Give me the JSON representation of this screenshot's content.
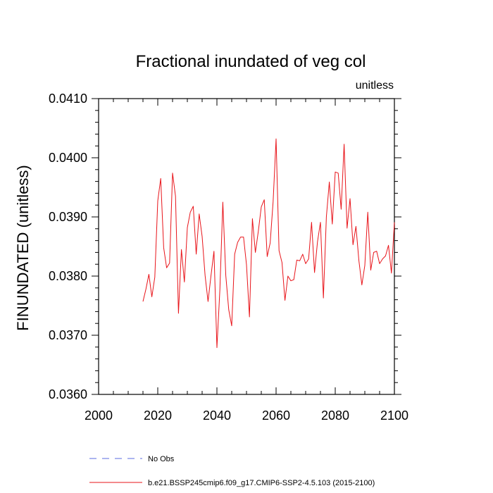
{
  "chart_data": {
    "type": "line",
    "title": "Fractional inundated of veg col",
    "units_label": "unitless",
    "ylabel": "FINUNDATED  (unitless)",
    "xlabel": "",
    "xlim": [
      2000,
      2100
    ],
    "ylim": [
      0.036,
      0.041
    ],
    "x_ticks": [
      2000,
      2020,
      2040,
      2060,
      2080,
      2100
    ],
    "x_tick_labels": [
      "2000",
      "2020",
      "2040",
      "2060",
      "2080",
      "2100"
    ],
    "y_ticks": [
      0.036,
      0.037,
      0.038,
      0.039,
      0.04,
      0.041
    ],
    "y_tick_labels": [
      "0.0360",
      "0.0370",
      "0.0380",
      "0.0390",
      "0.0400",
      "0.0410"
    ],
    "series": [
      {
        "name": "b.e21.BSSP245cmip6.f09_g17.CMIP6-SSP2-4.5.103 (2015-2100)",
        "color": "#e8141a",
        "x": [
          2015,
          2016,
          2017,
          2018,
          2019,
          2020,
          2021,
          2022,
          2023,
          2024,
          2025,
          2026,
          2027,
          2028,
          2029,
          2030,
          2031,
          2032,
          2033,
          2034,
          2035,
          2036,
          2037,
          2038,
          2039,
          2040,
          2041,
          2042,
          2043,
          2044,
          2045,
          2046,
          2047,
          2048,
          2049,
          2050,
          2051,
          2052,
          2053,
          2054,
          2055,
          2056,
          2057,
          2058,
          2059,
          2060,
          2061,
          2062,
          2063,
          2064,
          2065,
          2066,
          2067,
          2068,
          2069,
          2070,
          2071,
          2072,
          2073,
          2074,
          2075,
          2076,
          2077,
          2078,
          2079,
          2080,
          2081,
          2082,
          2083,
          2084,
          2085,
          2086,
          2087,
          2088,
          2089,
          2090,
          2091,
          2092,
          2093,
          2094,
          2095,
          2096,
          2097,
          2098,
          2099,
          2100
        ],
        "values": [
          0.03757,
          0.03778,
          0.03803,
          0.03765,
          0.03798,
          0.03927,
          0.03965,
          0.03848,
          0.03814,
          0.03822,
          0.03974,
          0.03935,
          0.03737,
          0.03845,
          0.0379,
          0.03882,
          0.03908,
          0.03918,
          0.03837,
          0.03905,
          0.03867,
          0.03801,
          0.03757,
          0.03801,
          0.03842,
          0.03679,
          0.03777,
          0.03925,
          0.03801,
          0.03743,
          0.03716,
          0.03837,
          0.03857,
          0.03866,
          0.03866,
          0.03819,
          0.03731,
          0.03897,
          0.0384,
          0.03876,
          0.03917,
          0.03929,
          0.03833,
          0.03856,
          0.03926,
          0.04032,
          0.03843,
          0.03823,
          0.03759,
          0.038,
          0.03792,
          0.03794,
          0.03827,
          0.03826,
          0.03837,
          0.03821,
          0.03829,
          0.03891,
          0.03806,
          0.03858,
          0.03891,
          0.03763,
          0.039,
          0.03959,
          0.03888,
          0.03976,
          0.03974,
          0.03913,
          0.04023,
          0.03881,
          0.03931,
          0.03853,
          0.03884,
          0.03826,
          0.03785,
          0.03818,
          0.03908,
          0.0381,
          0.0384,
          0.03842,
          0.03821,
          0.03829,
          0.03834,
          0.03852,
          0.03805,
          0.03891
        ]
      }
    ],
    "legend": [
      {
        "label": "No Obs",
        "style": "dashed",
        "color": "#5a6be0"
      },
      {
        "label": "b.e21.BSSP245cmip6.f09_g17.CMIP6-SSP2-4.5.103 (2015-2100)",
        "style": "solid",
        "color": "#e8141a"
      }
    ]
  }
}
